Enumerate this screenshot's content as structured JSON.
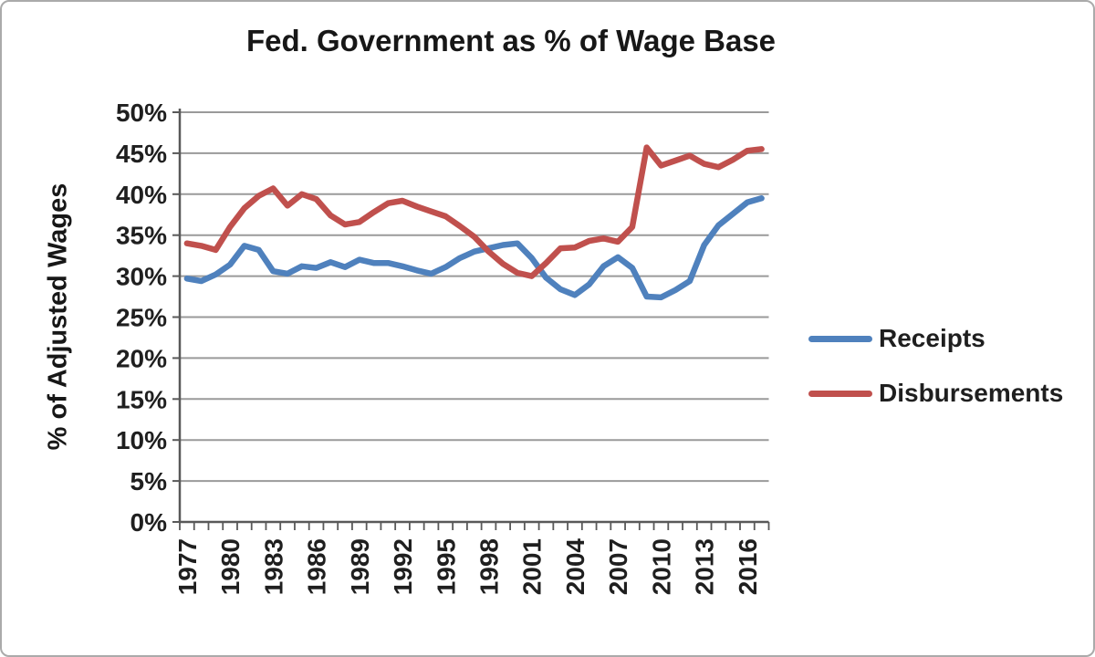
{
  "chart_data": {
    "type": "line",
    "title": "Fed. Government as % of Wage Base",
    "ylabel": "% of Adjusted Wages",
    "xlabel": "",
    "ylim": [
      0,
      50
    ],
    "ytick_step": 5,
    "ytick_labels": [
      "0%",
      "5%",
      "10%",
      "15%",
      "20%",
      "25%",
      "30%",
      "35%",
      "40%",
      "45%",
      "50%"
    ],
    "grid": "horizontal",
    "categories": [
      "1977",
      "1978",
      "1979",
      "1980",
      "1981",
      "1982",
      "1983",
      "1984",
      "1985",
      "1986",
      "1987",
      "1988",
      "1989",
      "1990",
      "1991",
      "1992",
      "1993",
      "1994",
      "1995",
      "1996",
      "1997",
      "1998",
      "1999",
      "2000",
      "2001",
      "2002",
      "2003",
      "2004",
      "2005",
      "2006",
      "2007",
      "2008",
      "2009",
      "2010",
      "2011",
      "2012",
      "2013",
      "2014",
      "2015",
      "2016",
      "2017"
    ],
    "xtick_every": 3,
    "xtick_labels_shown": [
      "1977",
      "1980",
      "1983",
      "1986",
      "1989",
      "1992",
      "1995",
      "1998",
      "2001",
      "2004",
      "2007",
      "2010",
      "2013",
      "2016"
    ],
    "series": [
      {
        "name": "Receipts",
        "color": "#4F81BD",
        "values": [
          29.7,
          29.4,
          30.2,
          31.4,
          33.7,
          33.2,
          30.6,
          30.3,
          31.2,
          31.0,
          31.7,
          31.1,
          32.0,
          31.6,
          31.6,
          31.2,
          30.7,
          30.3,
          31.1,
          32.2,
          33.0,
          33.4,
          33.8,
          34.0,
          32.2,
          29.8,
          28.4,
          27.7,
          29.0,
          31.2,
          32.3,
          31.0,
          27.5,
          27.4,
          28.3,
          29.4,
          33.8,
          36.2,
          37.6,
          39.0,
          39.5
        ]
      },
      {
        "name": "Disbursements",
        "color": "#C0504D",
        "values": [
          34.0,
          33.7,
          33.2,
          36.0,
          38.3,
          39.8,
          40.7,
          38.6,
          40.0,
          39.4,
          37.4,
          36.3,
          36.6,
          37.8,
          38.9,
          39.2,
          38.5,
          37.9,
          37.3,
          36.1,
          34.8,
          33.0,
          31.5,
          30.4,
          30.0,
          31.6,
          33.4,
          33.5,
          34.3,
          34.6,
          34.2,
          36.0,
          45.7,
          43.5,
          44.1,
          44.7,
          43.7,
          43.3,
          44.2,
          45.3,
          45.5
        ]
      }
    ],
    "legend_position": "middle-right",
    "colors": {
      "gridline": "#9a9a9a",
      "axis": "#595959",
      "tick_text": "#1f1f1f",
      "background": "#ffffff",
      "frame_border": "#aaaaaa"
    }
  }
}
